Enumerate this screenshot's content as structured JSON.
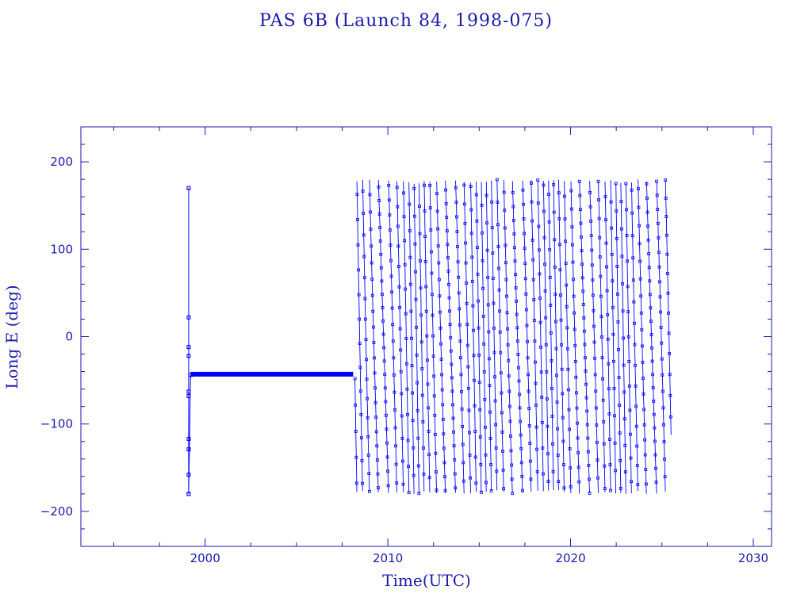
{
  "chart_data": {
    "type": "scatter",
    "title": "PAS 6B (Launch 84, 1998-075)",
    "xlabel": "Time(UTC)",
    "ylabel": "Long E (deg)",
    "xlim": [
      1993.2,
      2031.0
    ],
    "ylim": [
      -240,
      240
    ],
    "x_ticks": [
      2000,
      2010,
      2020,
      2030
    ],
    "y_ticks": [
      200,
      100,
      0,
      -100,
      -200
    ],
    "grid": false,
    "legend": "none",
    "color": "#0000ff",
    "series": [
      {
        "segments": [
          {
            "description_points": [
              [
                1999.1,
                -180
              ],
              [
                1999.1,
                170
              ],
              [
                1999.1,
                22
              ],
              [
                1999.1,
                -12
              ],
              [
                1999.1,
                -22
              ],
              [
                1999.1,
                -63
              ],
              [
                1999.1,
                -68
              ],
              [
                1999.1,
                -117
              ],
              [
                1999.1,
                -129
              ],
              [
                1999.1,
                -158
              ],
              [
                1999.1,
                -180
              ],
              [
                1999.2,
                -44
              ]
            ]
          },
          {
            "station_keeping": {
              "x_start": 1999.2,
              "x_end": 2008.1,
              "value": -43
            }
          },
          {
            "drift": {
              "x_start": 2008.2,
              "x_end": 2025.5,
              "min": -180,
              "max": 180,
              "cycles_per_year": 3.2
            }
          }
        ]
      }
    ]
  }
}
